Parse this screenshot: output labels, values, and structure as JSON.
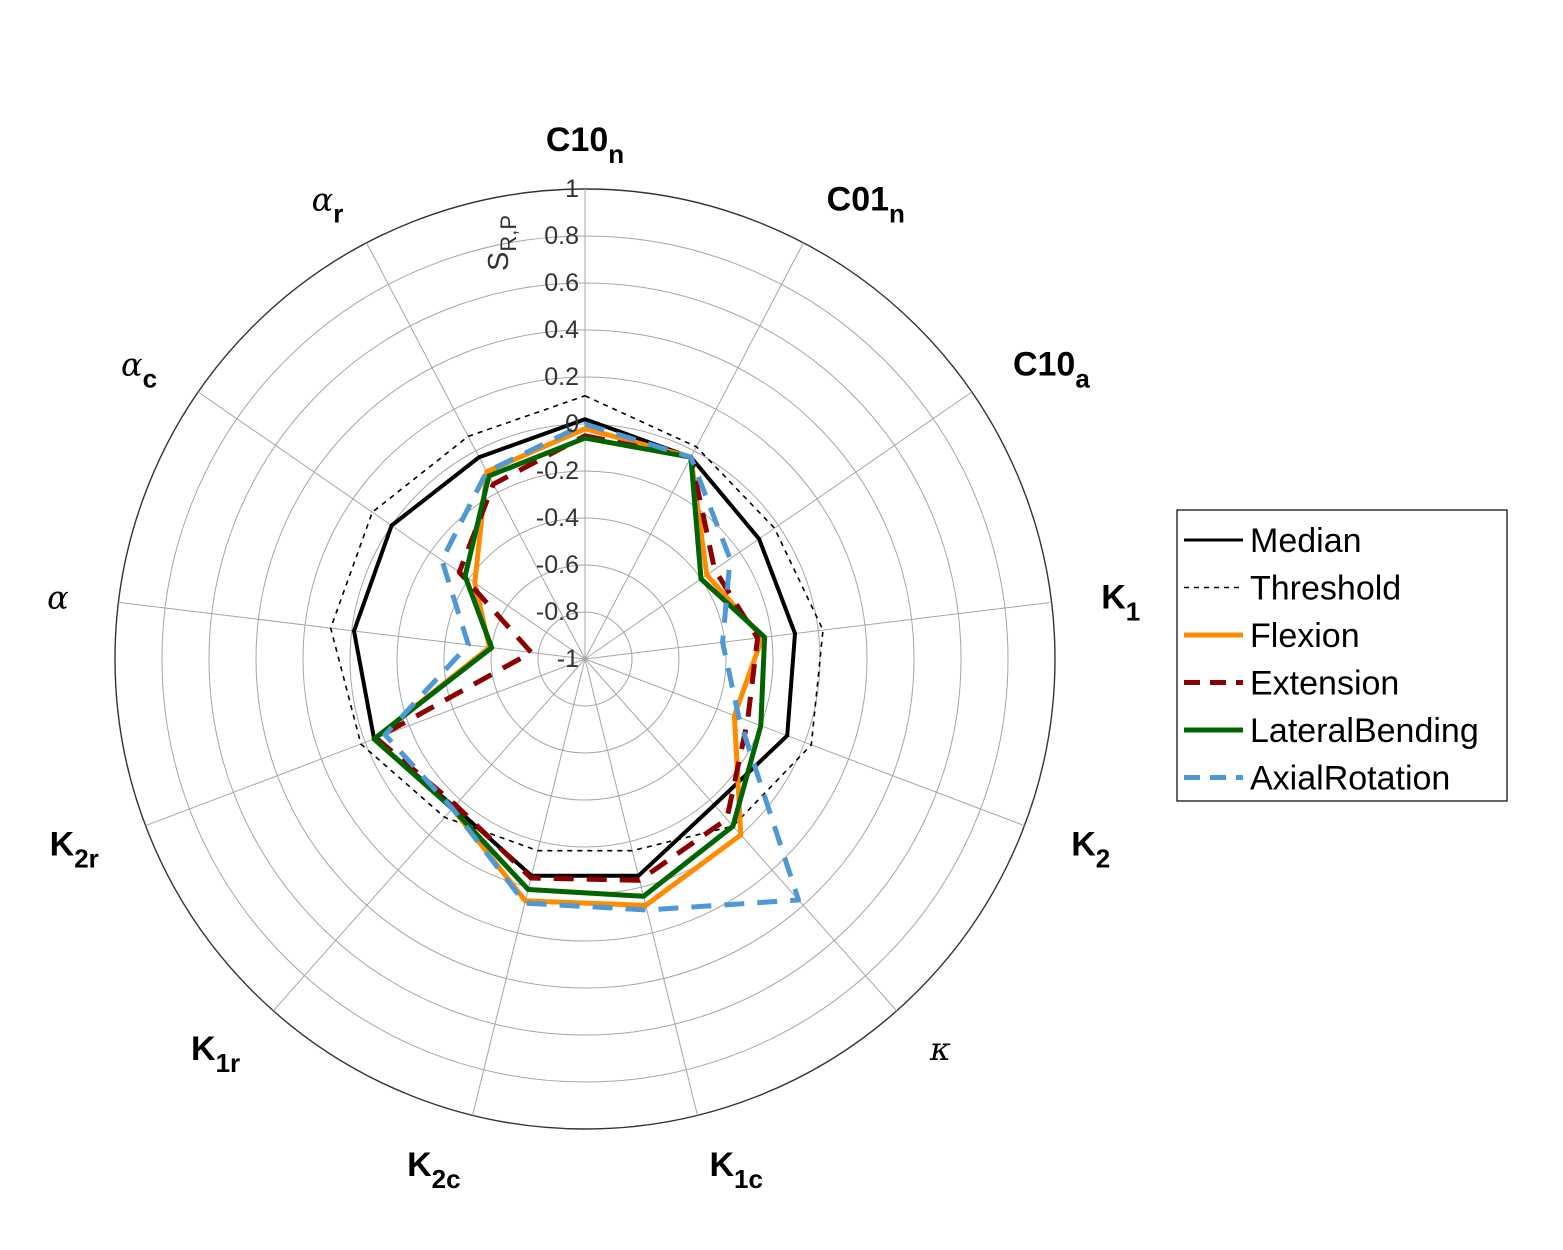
{
  "chart_data": {
    "type": "radar",
    "radial_label": {
      "main": "S",
      "sub": "R,P"
    },
    "rlim": [
      -1,
      1
    ],
    "rticks": [
      "1",
      "0.8",
      "0.6",
      "0.4",
      "0.2",
      "0",
      "-0.2",
      "-0.4",
      "-0.6",
      "-0.8",
      "-1"
    ],
    "rtick_values": [
      1,
      0.8,
      0.6,
      0.4,
      0.2,
      0,
      -0.2,
      -0.4,
      -0.6,
      -0.8,
      -1
    ],
    "axes": [
      {
        "main": "C10",
        "sub": "n",
        "greek": false
      },
      {
        "main": "C01",
        "sub": "n",
        "greek": false
      },
      {
        "main": "C10",
        "sub": "a",
        "greek": false
      },
      {
        "main": "K",
        "sub": "1",
        "greek": false
      },
      {
        "main": "K",
        "sub": "2",
        "greek": false
      },
      {
        "main": "κ",
        "sub": "",
        "greek": true
      },
      {
        "main": "K",
        "sub": "1c",
        "greek": false
      },
      {
        "main": "K",
        "sub": "2c",
        "greek": false
      },
      {
        "main": "K",
        "sub": "1r",
        "greek": false
      },
      {
        "main": "K",
        "sub": "2r",
        "greek": false
      },
      {
        "main": "α",
        "sub": "",
        "greek": true
      },
      {
        "main": "α",
        "sub": "c",
        "greek": true
      },
      {
        "main": "α",
        "sub": "r",
        "greek": true
      }
    ],
    "series": [
      {
        "name": "Median",
        "color": "#000000",
        "dash": "solid",
        "width": 4,
        "values": [
          0.02,
          -0.03,
          -0.1,
          -0.1,
          -0.08,
          -0.17,
          -0.05,
          -0.05,
          -0.16,
          -0.04,
          -0.01,
          0.0,
          -0.03
        ]
      },
      {
        "name": "Threshold",
        "color": "#000000",
        "dash": "dotted",
        "width": 1.6,
        "values": [
          0.12,
          0.02,
          -0.02,
          0.02,
          0.03,
          -0.05,
          -0.16,
          -0.16,
          -0.1,
          0.02,
          0.09,
          0.1,
          0.07
        ]
      },
      {
        "name": "Flexion",
        "color": "#FF8C00",
        "dash": "solid",
        "width": 5,
        "values": [
          -0.02,
          -0.03,
          -0.37,
          -0.24,
          -0.32,
          0.0,
          0.08,
          0.06,
          -0.15,
          -0.04,
          -0.59,
          -0.43,
          -0.1
        ]
      },
      {
        "name": "Extension",
        "color": "#8B0000",
        "dash": "dash",
        "width": 5,
        "values": [
          -0.05,
          -0.03,
          -0.33,
          -0.26,
          -0.26,
          -0.09,
          -0.03,
          -0.04,
          -0.17,
          -0.05,
          -0.77,
          -0.35,
          -0.16
        ]
      },
      {
        "name": "LateralBending",
        "color": "#006400",
        "dash": "solid",
        "width": 5,
        "values": [
          -0.06,
          -0.03,
          -0.4,
          -0.23,
          -0.2,
          -0.05,
          0.04,
          0.01,
          -0.15,
          -0.04,
          -0.6,
          -0.38,
          -0.12
        ]
      },
      {
        "name": "AxialRotation",
        "color": "#4E98D5",
        "dash": "dash",
        "width": 5,
        "values": [
          0.0,
          -0.03,
          -0.25,
          -0.41,
          -0.3,
          0.37,
          0.1,
          0.07,
          -0.15,
          -0.09,
          -0.5,
          -0.26,
          -0.1
        ]
      }
    ],
    "legend_position": "right"
  }
}
